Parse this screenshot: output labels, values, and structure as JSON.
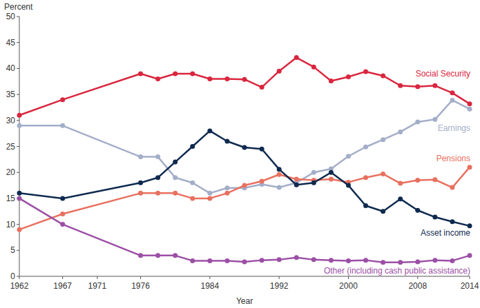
{
  "chart_data": {
    "type": "line",
    "y_label": "Percent",
    "x_label": "Year",
    "x": [
      1962,
      1967,
      1976,
      1978,
      1980,
      1982,
      1984,
      1986,
      1988,
      1990,
      1992,
      1994,
      1996,
      1998,
      2000,
      2002,
      2004,
      2006,
      2008,
      2010,
      2012,
      2014
    ],
    "series": [
      {
        "name": "Social Security",
        "color": "#d9263e",
        "marker": "circle",
        "values": [
          31,
          34,
          39,
          38,
          39,
          39,
          38,
          38,
          37.9,
          36.4,
          39.5,
          42.1,
          40.3,
          37.6,
          38.4,
          39.4,
          38.6,
          36.7,
          36.5,
          36.7,
          35.3,
          33.2
        ]
      },
      {
        "name": "Earnings",
        "color": "#a3aec8",
        "marker": "circle",
        "values": [
          29,
          29,
          23,
          23,
          19,
          18,
          16,
          17,
          17,
          17.7,
          17.1,
          18,
          20,
          20.7,
          23.1,
          24.9,
          26.3,
          27.8,
          29.7,
          30.2,
          33.9,
          32.2
        ]
      },
      {
        "name": "Pensions",
        "color": "#e8705f",
        "marker": "circle",
        "values": [
          9,
          12,
          16,
          16,
          16,
          15,
          15,
          16,
          17.5,
          18.3,
          19.6,
          18.7,
          18.5,
          18.7,
          18.1,
          19,
          19.7,
          17.9,
          18.5,
          18.6,
          17.1,
          21
        ]
      },
      {
        "name": "Asset income",
        "color": "#0f2a4f",
        "marker": "circle",
        "values": [
          16,
          15,
          18,
          19,
          22,
          25,
          28,
          26,
          24.8,
          24.5,
          20.6,
          17.6,
          18,
          20,
          17.5,
          13.6,
          12.5,
          14.9,
          12.7,
          11.4,
          10.5,
          9.7
        ]
      },
      {
        "name": "Other (including cash public assistance)",
        "color": "#9b4fa5",
        "marker": "circle",
        "values": [
          15,
          10,
          4,
          4,
          4,
          3,
          3,
          3,
          2.8,
          3.1,
          3.2,
          3.6,
          3.2,
          3.1,
          3.0,
          3.1,
          2.7,
          2.7,
          2.8,
          3.1,
          3.0,
          4.0
        ]
      }
    ],
    "xlim": [
      1962,
      2014
    ],
    "xticks": [
      1962,
      1967,
      1971,
      1976,
      1984,
      1992,
      2000,
      2008,
      2014
    ],
    "ylim": [
      0,
      50
    ],
    "yticks": [
      0,
      5,
      10,
      15,
      20,
      25,
      30,
      35,
      40,
      45,
      50
    ],
    "grid": false
  }
}
